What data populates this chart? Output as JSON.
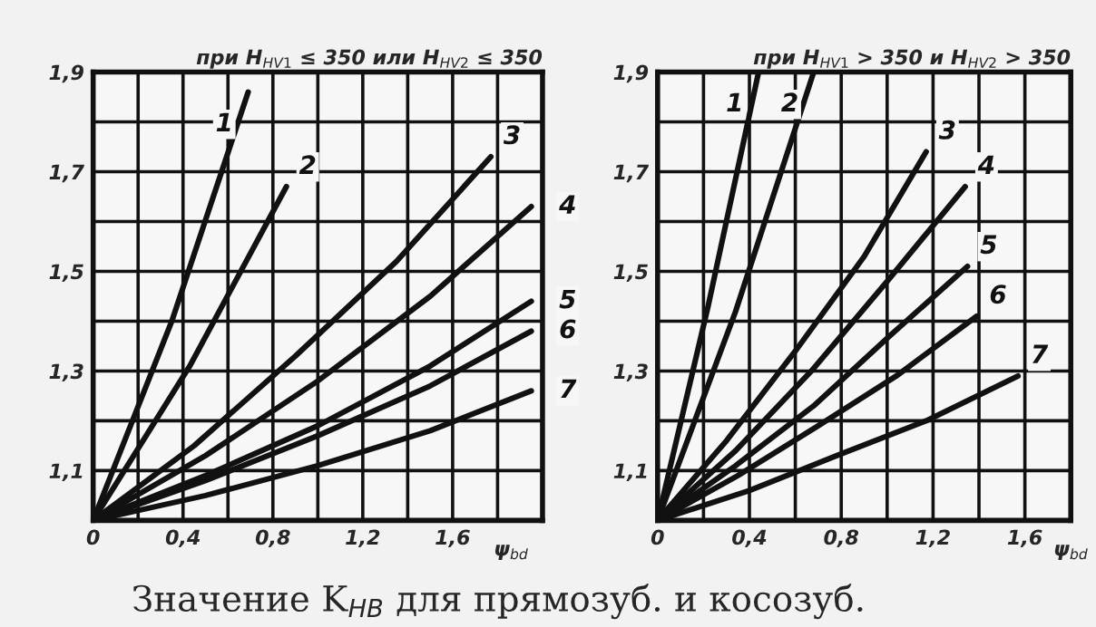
{
  "chart_data": [
    {
      "type": "line",
      "title": "при H$_{HV1}$ ≤ 350 или H$_{HV2}$ ≤ 350",
      "xlabel": "ψ$_{bd}$",
      "xlim": [
        0,
        2.0
      ],
      "ylim": [
        1.0,
        1.9
      ],
      "xticks": [
        0,
        {
          "value": 0.2,
          "label": null
        },
        {
          "value": 0.4,
          "label": "0,4"
        },
        {
          "value": 0.6,
          "label": null
        },
        {
          "value": 0.8,
          "label": "0,8"
        },
        {
          "value": 1.0,
          "label": null
        },
        {
          "value": 1.2,
          "label": "1,2"
        },
        {
          "value": 1.4,
          "label": null
        },
        {
          "value": 1.6,
          "label": "1,6"
        },
        {
          "value": 1.8,
          "label": null
        }
      ],
      "yticks": [
        {
          "value": 1.1,
          "label": "1,1"
        },
        {
          "value": 1.2,
          "label": null
        },
        {
          "value": 1.3,
          "label": "1,3"
        },
        {
          "value": 1.4,
          "label": null
        },
        {
          "value": 1.5,
          "label": "1,5"
        },
        {
          "value": 1.6,
          "label": null
        },
        {
          "value": 1.7,
          "label": "1,7"
        },
        {
          "value": 1.8,
          "label": null
        },
        {
          "value": 1.9,
          "label": "1,9"
        }
      ],
      "grid": true,
      "legend": false,
      "line_style": "solid",
      "marker": "none",
      "series": [
        {
          "name": "1",
          "color": "#111111",
          "x": [
            0,
            0.35,
            0.69
          ],
          "values": [
            1.0,
            1.4,
            1.86
          ]
        },
        {
          "name": "2",
          "color": "#111111",
          "x": [
            0,
            0.43,
            0.86
          ],
          "values": [
            1.0,
            1.31,
            1.67
          ]
        },
        {
          "name": "3",
          "color": "#111111",
          "x": [
            0,
            0.45,
            0.9,
            1.35,
            1.77
          ],
          "values": [
            1.0,
            1.15,
            1.33,
            1.52,
            1.73
          ]
        },
        {
          "name": "4",
          "color": "#111111",
          "x": [
            0,
            0.5,
            1.0,
            1.5,
            1.95
          ],
          "values": [
            1.0,
            1.13,
            1.28,
            1.45,
            1.63
          ]
        },
        {
          "name": "5",
          "color": "#111111",
          "x": [
            0,
            0.5,
            1.0,
            1.5,
            1.95
          ],
          "values": [
            1.0,
            1.09,
            1.19,
            1.31,
            1.44
          ]
        },
        {
          "name": "6",
          "color": "#111111",
          "x": [
            0,
            0.5,
            1.0,
            1.5,
            1.95
          ],
          "values": [
            1.0,
            1.08,
            1.17,
            1.27,
            1.38
          ]
        },
        {
          "name": "7",
          "color": "#111111",
          "x": [
            0,
            0.5,
            1.0,
            1.5,
            1.95
          ],
          "values": [
            1.0,
            1.05,
            1.11,
            1.18,
            1.26
          ]
        }
      ],
      "annotations": [
        "Значение K$_{HB}$ для прямозуб. и косозуб."
      ]
    },
    {
      "type": "line",
      "title": "при H$_{HV1}$ > 350 и H$_{HV2}$ > 350",
      "xlabel": "ψ$_{bd}$",
      "xlim": [
        0,
        1.8
      ],
      "ylim": [
        1.0,
        1.9
      ],
      "xticks": [
        0,
        {
          "value": 0.2,
          "label": null
        },
        {
          "value": 0.4,
          "label": "0,4"
        },
        {
          "value": 0.6,
          "label": null
        },
        {
          "value": 0.8,
          "label": "0,8"
        },
        {
          "value": 1.0,
          "label": null
        },
        {
          "value": 1.2,
          "label": "1,2"
        },
        {
          "value": 1.4,
          "label": null
        },
        {
          "value": 1.6,
          "label": "1,6"
        }
      ],
      "yticks": [
        {
          "value": 1.1,
          "label": "1,1"
        },
        {
          "value": 1.2,
          "label": null
        },
        {
          "value": 1.3,
          "label": "1,3"
        },
        {
          "value": 1.4,
          "label": null
        },
        {
          "value": 1.5,
          "label": "1,5"
        },
        {
          "value": 1.6,
          "label": null
        },
        {
          "value": 1.7,
          "label": "1,7"
        },
        {
          "value": 1.8,
          "label": null
        },
        {
          "value": 1.9,
          "label": "1,9"
        }
      ],
      "grid": true,
      "legend": false,
      "line_style": "solid",
      "marker": "none",
      "series": [
        {
          "name": "1",
          "color": "#111111",
          "x": [
            0,
            0.22,
            0.44
          ],
          "values": [
            1.0,
            1.43,
            1.9
          ]
        },
        {
          "name": "2",
          "color": "#111111",
          "x": [
            0,
            0.34,
            0.68
          ],
          "values": [
            1.0,
            1.42,
            1.9
          ]
        },
        {
          "name": "3",
          "color": "#111111",
          "x": [
            0,
            0.3,
            0.6,
            0.9,
            1.17
          ],
          "values": [
            1.0,
            1.16,
            1.34,
            1.53,
            1.74
          ]
        },
        {
          "name": "4",
          "color": "#111111",
          "x": [
            0,
            0.34,
            0.67,
            1.0,
            1.34
          ],
          "values": [
            1.0,
            1.14,
            1.3,
            1.48,
            1.67
          ]
        },
        {
          "name": "5",
          "color": "#111111",
          "x": [
            0,
            0.34,
            0.68,
            1.01,
            1.35
          ],
          "values": [
            1.0,
            1.11,
            1.23,
            1.37,
            1.51
          ]
        },
        {
          "name": "6",
          "color": "#111111",
          "x": [
            0,
            0.35,
            0.7,
            1.04,
            1.39
          ],
          "values": [
            1.0,
            1.09,
            1.19,
            1.29,
            1.41
          ]
        },
        {
          "name": "7",
          "color": "#111111",
          "x": [
            0,
            0.4,
            0.78,
            1.17,
            1.57
          ],
          "values": [
            1.0,
            1.06,
            1.13,
            1.2,
            1.29
          ]
        }
      ]
    }
  ]
}
